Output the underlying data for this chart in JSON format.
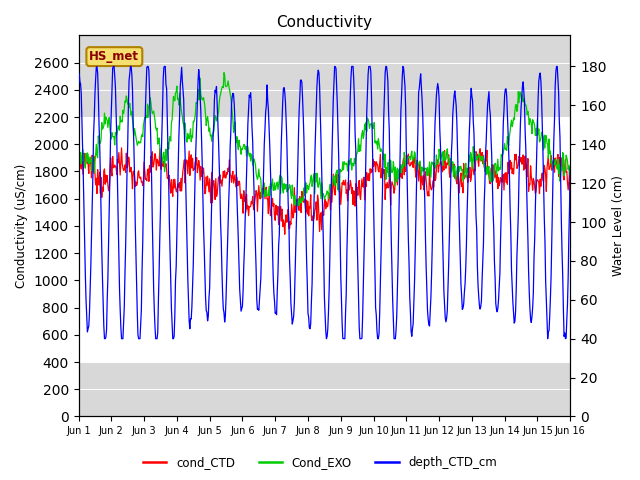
{
  "title": "Conductivity",
  "ylabel_left": "Conductivity (uS/cm)",
  "ylabel_right": "Water Level (cm)",
  "ylim_left": [
    0,
    2800
  ],
  "ylim_right": [
    0,
    196
  ],
  "yticks_left": [
    0,
    200,
    400,
    600,
    800,
    1000,
    1200,
    1400,
    1600,
    1800,
    2000,
    2200,
    2400,
    2600
  ],
  "yticks_right": [
    0,
    20,
    40,
    60,
    80,
    100,
    120,
    140,
    160,
    180
  ],
  "xtick_labels": [
    "Jun 1",
    "Jun 2",
    "Jun 3",
    "Jun 4",
    "Jun 5",
    "Jun 6",
    "Jun 7",
    "Jun 8",
    "Jun 9",
    "Jun 10",
    "Jun 11",
    "Jun 12",
    "Jun 13",
    "Jun 14",
    "Jun 15",
    "Jun 16"
  ],
  "n_points": 721,
  "annotation_text": "HS_met",
  "annotation_facecolor": "#f5e070",
  "annotation_edgecolor": "#b08000",
  "annotation_textcolor": "#8b0000",
  "legend_labels": [
    "cond_CTD",
    "Cond_EXO",
    "depth_CTD_cm"
  ],
  "legend_colors": [
    "red",
    "#00cc00",
    "blue"
  ],
  "gray_band1_lo": 2200,
  "gray_band1_hi": 2800,
  "gray_band2_lo": 0,
  "gray_band2_hi": 400,
  "band_color": "#d8d8d8",
  "bg_color": "white",
  "line_width": 0.9,
  "figsize": [
    6.4,
    4.8
  ],
  "dpi": 100
}
